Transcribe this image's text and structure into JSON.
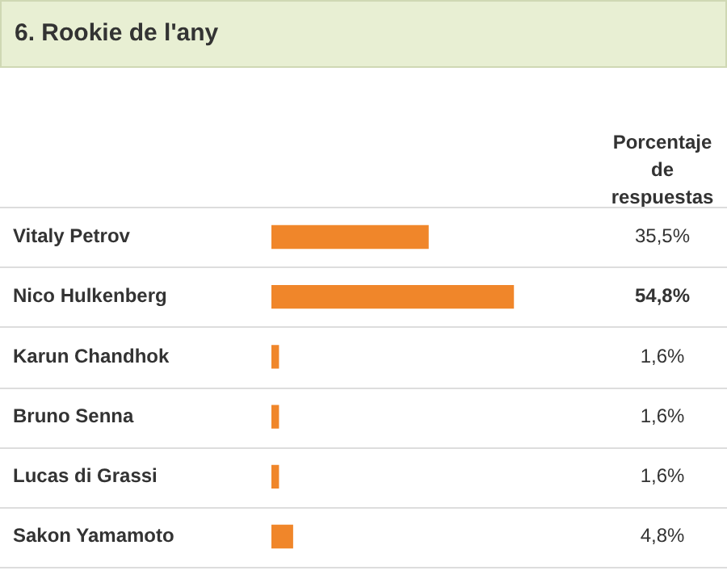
{
  "chart_data": {
    "type": "bar",
    "orientation": "horizontal",
    "title": "6. Rookie de l'any",
    "xlabel": "Porcentaje de respuestas",
    "categories": [
      "Vitaly Petrov",
      "Nico Hulkenberg",
      "Karun Chandhok",
      "Bruno Senna",
      "Lucas di Grassi",
      "Sakon Yamamoto"
    ],
    "values": [
      35.5,
      54.8,
      1.6,
      1.6,
      1.6,
      4.8
    ],
    "value_labels": [
      "35,5%",
      "54,8%",
      "1,6%",
      "1,6%",
      "1,6%",
      "4,8%"
    ],
    "color": "#f0862a",
    "tick_labels": "y",
    "legend": false
  }
}
